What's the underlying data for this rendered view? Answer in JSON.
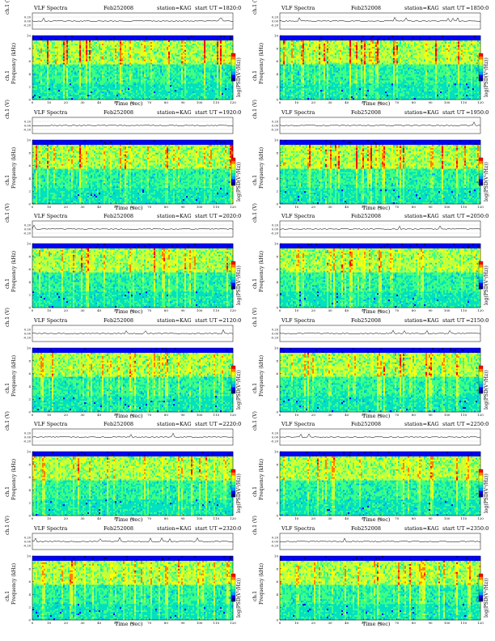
{
  "header": {
    "title": "VLF Spectra",
    "date": "Feb252008",
    "station": "station=KAG",
    "start_label": "start UT"
  },
  "panels": [
    {
      "start_ut": "=1820:0"
    },
    {
      "start_ut": "=1850:0"
    },
    {
      "start_ut": "=1920:0"
    },
    {
      "start_ut": "=1950:0"
    },
    {
      "start_ut": "=2020:0"
    },
    {
      "start_ut": "=2050:0"
    },
    {
      "start_ut": "=2120:0"
    },
    {
      "start_ut": "=2150:0"
    },
    {
      "start_ut": "=2220:0"
    },
    {
      "start_ut": "=2250:0"
    },
    {
      "start_ut": "=2320:0"
    },
    {
      "start_ut": "=2350:0"
    }
  ],
  "labels": {
    "ch1_volts": "ch.1 (V)",
    "frequency": "Frequency (kHz)",
    "ch1": "ch.1",
    "colorbar": "log(PSD(V²/Hz))",
    "time": "Time (sec)"
  },
  "chart_data": {
    "type": "heatmap",
    "title": "VLF Spectra",
    "xlabel": "Time (sec)",
    "ylabel": "Frequency (kHz)",
    "xlim": [
      0,
      120
    ],
    "ylim": [
      0,
      10
    ],
    "x_ticks": [
      "0",
      "10",
      "20",
      "30",
      "40",
      "50",
      "60",
      "70",
      "80",
      "90",
      "100",
      "110",
      "120"
    ],
    "y_ticks": [
      "0",
      "2",
      "4",
      "6",
      "8",
      "10"
    ],
    "waveform_ticks": [
      "-0.20",
      "0.00",
      "0.20"
    ],
    "colorbar_ticks": [
      "-5",
      "-6",
      "-7",
      "-8"
    ],
    "colormap": [
      "#000080",
      "#0000ff",
      "#00a0ff",
      "#00e0c0",
      "#40ff80",
      "#c0ff40",
      "#ffff00",
      "#ff8000",
      "#ff0000"
    ]
  }
}
